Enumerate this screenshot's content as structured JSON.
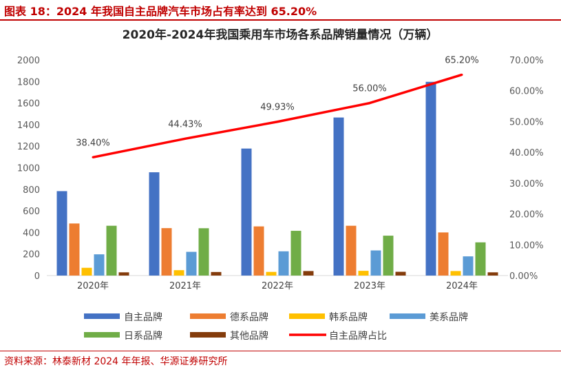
{
  "figure": {
    "caption": "图表 18：2024 年我国自主品牌汽车市场占有率达到 65.20%",
    "source": "资料来源：林泰新材 2024 年年报、华源证券研究所"
  },
  "chart_data": {
    "type": "bar",
    "title": "2020年-2024年我国乘用车市场各系品牌销量情况（万辆）",
    "categories": [
      "2020年",
      "2021年",
      "2022年",
      "2023年",
      "2024年"
    ],
    "ylim": [
      0,
      2000
    ],
    "yticks": [
      "0",
      "200",
      "400",
      "600",
      "800",
      "1000",
      "1200",
      "1400",
      "1600",
      "1800",
      "2000"
    ],
    "y2lim": [
      0,
      70
    ],
    "y2ticks": [
      "0.00%",
      "10.00%",
      "20.00%",
      "30.00%",
      "40.00%",
      "50.00%",
      "60.00%",
      "70.00%"
    ],
    "series": [
      {
        "name": "自主品牌",
        "type": "bar",
        "color": "#4472c4",
        "values": [
          783,
          958,
          1178,
          1466,
          1797
        ]
      },
      {
        "name": "德系品牌",
        "type": "bar",
        "color": "#ed7d31",
        "values": [
          483,
          440,
          456,
          462,
          400
        ]
      },
      {
        "name": "韩系品牌",
        "type": "bar",
        "color": "#ffc000",
        "values": [
          72,
          50,
          34,
          44,
          42
        ]
      },
      {
        "name": "美系品牌",
        "type": "bar",
        "color": "#5b9bd5",
        "values": [
          197,
          220,
          225,
          233,
          178
        ]
      },
      {
        "name": "日系品牌",
        "type": "bar",
        "color": "#70ad47",
        "values": [
          462,
          439,
          415,
          370,
          308
        ]
      },
      {
        "name": "其他品牌",
        "type": "bar",
        "color": "#843c0c",
        "values": [
          30,
          33,
          42,
          35,
          30
        ]
      },
      {
        "name": "自主品牌占比",
        "type": "line",
        "axis": "right",
        "color": "#ff0000",
        "values": [
          38.4,
          44.43,
          49.93,
          56.0,
          65.2
        ],
        "labels": [
          "38.40%",
          "44.43%",
          "49.93%",
          "56.00%",
          "65.20%"
        ]
      }
    ],
    "legend": "bottom",
    "grid": false
  }
}
